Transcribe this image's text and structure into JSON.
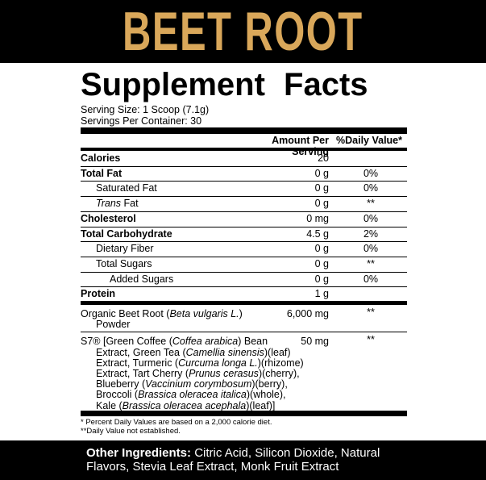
{
  "brand_title": "BEET ROOT",
  "panel": {
    "title": "Supplement Facts",
    "serving_size": "Serving Size: 1 Scoop (7.1g)",
    "servings_per_container": "Servings Per Container: 30",
    "header": {
      "amount": "Amount Per Serving",
      "daily_value": "%Daily Value*"
    },
    "nutrients": [
      {
        "name": "Calories",
        "amount": "20"
      },
      {
        "name": "Total Fat",
        "amount": "0 g",
        "dv": "0%"
      },
      {
        "name": "Saturated Fat",
        "amount": "0 g",
        "dv": "0%"
      },
      {
        "name_italic": "Trans",
        "name": "Fat",
        "amount": "0 g",
        "dv": "**"
      },
      {
        "name": "Cholesterol",
        "amount": "0 mg",
        "dv": "0%"
      },
      {
        "name": "Total Carbohydrate",
        "amount": "4.5 g",
        "dv": "2%"
      },
      {
        "name": "Dietary Fiber",
        "amount": "0 g",
        "dv": "0%"
      },
      {
        "name": "Total Sugars",
        "amount": "0 g",
        "dv": "**"
      },
      {
        "name": "Added Sugars",
        "amount": "0 g",
        "dv": "0%"
      },
      {
        "name": "Protein",
        "amount": "1 g"
      }
    ],
    "ingredients": [
      {
        "lines": [
          [
            "Organic Beet Root (",
            "Beta vulgaris L.",
            ")"
          ],
          [
            "Powder"
          ]
        ],
        "amount": "6,000 mg",
        "dv": "**"
      },
      {
        "lines": [
          [
            "S7® [Green Coffee (",
            "Coffea arabica",
            ") Bean"
          ],
          [
            "Extract, Green Tea (",
            "Camellia sinensis",
            ")(leaf)"
          ],
          [
            "Extract, Turmeric (",
            "Curcuma longa L.",
            ")(rhizome)"
          ],
          [
            "Extract, Tart Cherry (",
            "Prunus cerasus",
            ")(cherry),"
          ],
          [
            "Blueberry (",
            "Vaccinium corymbosum",
            ")(berry),"
          ],
          [
            "Broccoli (",
            "Brassica oleracea italica",
            ")(whole),"
          ],
          [
            "Kale (",
            "Brassica oleracea acephala",
            ")(leaf)]"
          ]
        ],
        "amount": "50 mg",
        "dv": "**"
      }
    ],
    "footnotes": [
      "* Percent Daily Values are based on a 2,000 calorie diet.",
      "**Daily Value not established."
    ]
  },
  "other_ingredients": {
    "label": "Other Ingredients:",
    "text": "Citric Acid, Silicon Dioxide, Natural Flavors, Stevia Leaf Extract, Monk Fruit Extract"
  }
}
